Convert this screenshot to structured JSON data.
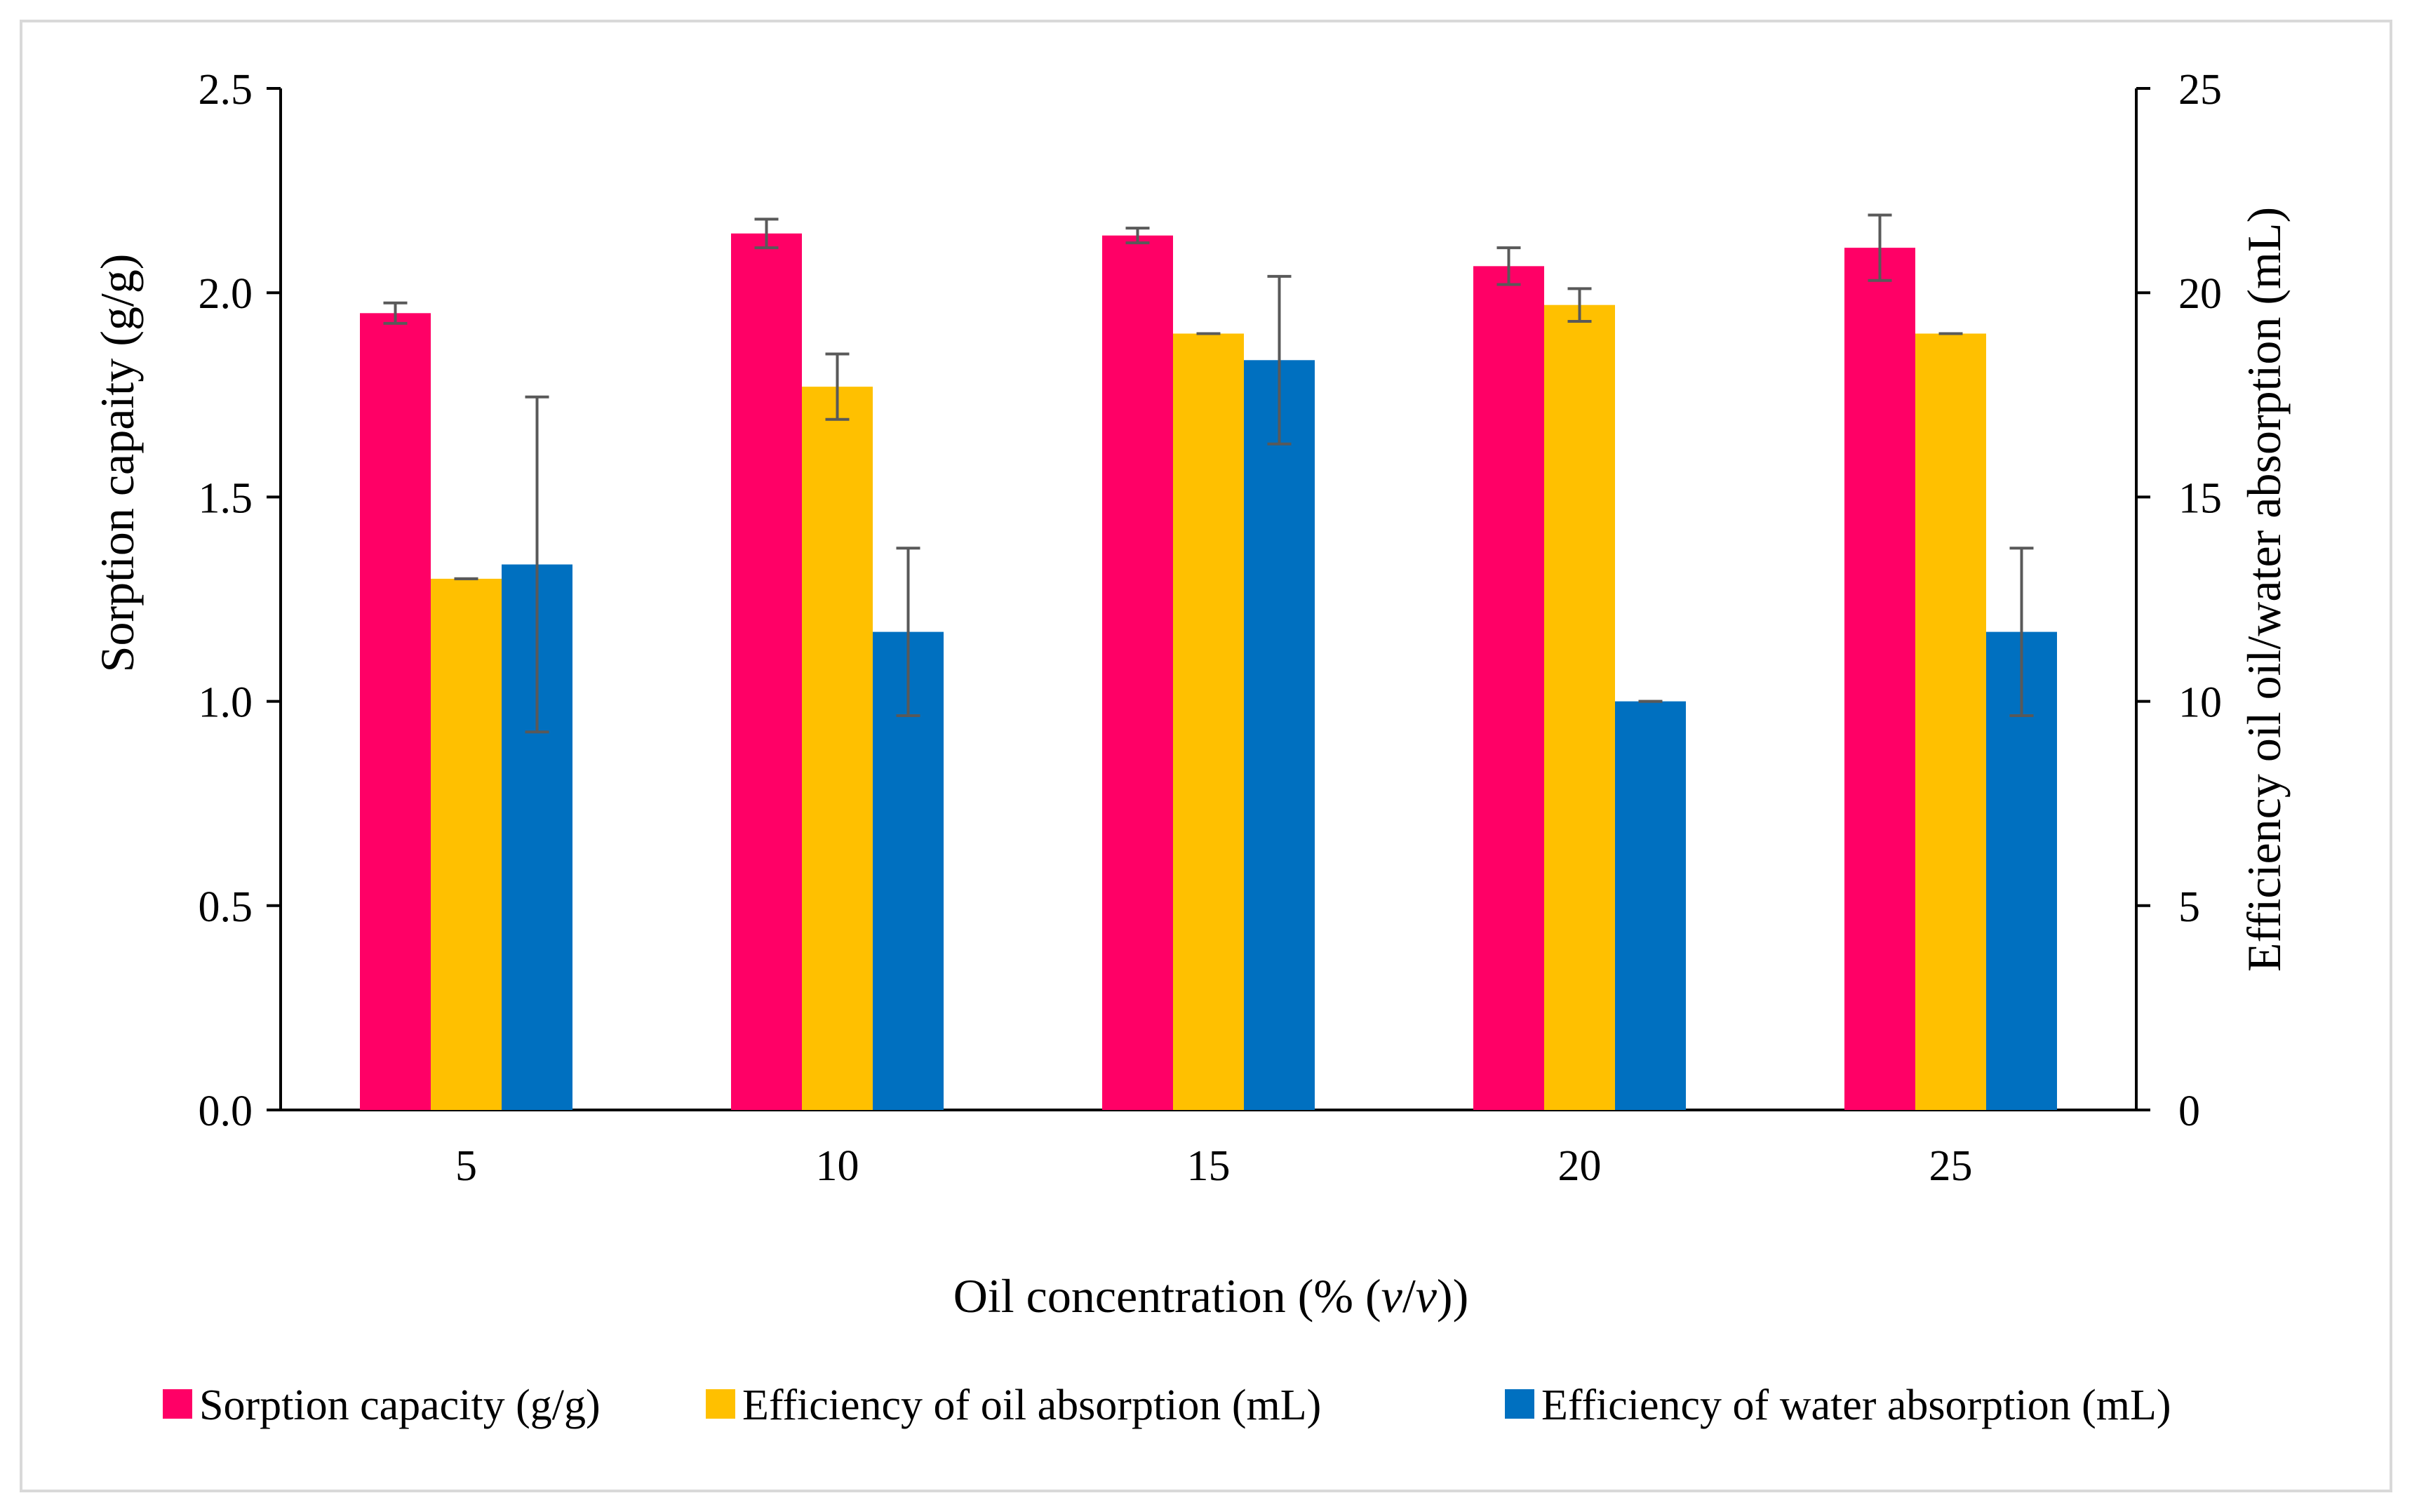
{
  "chart_data": {
    "type": "bar",
    "title": "",
    "xlabel_prefix": "Oil concentration (% (",
    "xlabel_var1": "v",
    "xlabel_sep": "/",
    "xlabel_var2": "v",
    "xlabel_suffix": "))",
    "ylabel_left": "Sorption capaity (g/g)",
    "ylabel_right": "Efficiency oil oil/water absorption (mL)",
    "categories": [
      "5",
      "10",
      "15",
      "20",
      "25"
    ],
    "ylim_left": [
      0,
      2.5
    ],
    "ylim_right": [
      0,
      25
    ],
    "yticks_left": [
      "0.0",
      "0.5",
      "1.0",
      "1.5",
      "2.0",
      "2.5"
    ],
    "yticks_right": [
      "0",
      "5",
      "10",
      "15",
      "20",
      "25"
    ],
    "grid": false,
    "legend_position": "bottom",
    "series": [
      {
        "name": "Sorption capacity (g/g)",
        "axis": "left",
        "color": "#ff0066",
        "values": [
          1.95,
          2.145,
          2.14,
          2.065,
          2.11
        ],
        "errors": [
          0.025,
          0.035,
          0.018,
          0.045,
          0.08
        ]
      },
      {
        "name": "Efficiency of oil absorption (mL)",
        "axis": "right",
        "color": "#ffc000",
        "values": [
          13.0,
          17.7,
          19.0,
          19.7,
          19.0
        ],
        "errors": [
          0.0,
          0.8,
          0.0,
          0.4,
          0.0
        ]
      },
      {
        "name": "Efficiency of water absorption (mL)",
        "axis": "right",
        "color": "#0070c0",
        "values": [
          13.35,
          11.7,
          18.35,
          10.0,
          11.7
        ],
        "errors": [
          4.1,
          2.05,
          2.05,
          0.0,
          2.05
        ]
      }
    ],
    "error_bar_color": "#595959",
    "axis_color": "#000000"
  }
}
